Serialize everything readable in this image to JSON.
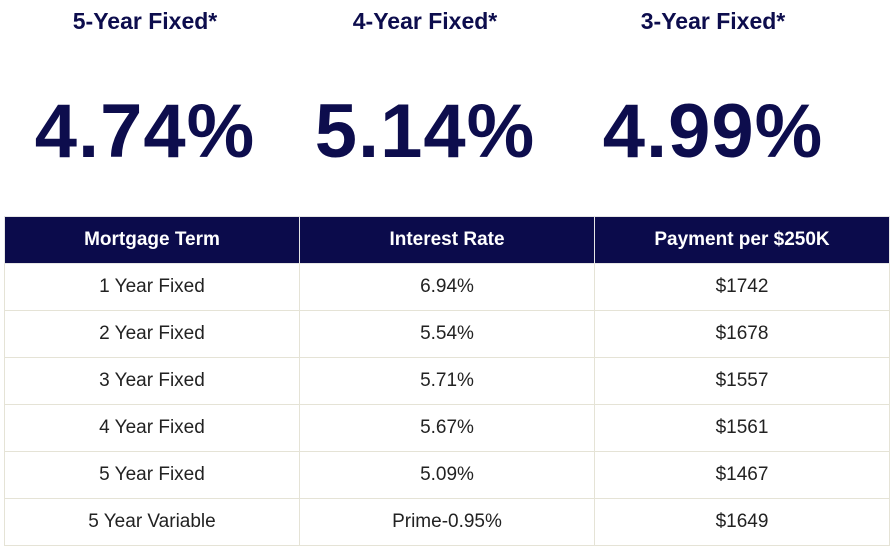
{
  "highlights": [
    {
      "label": "5-Year Fixed*",
      "rate": "4.74%"
    },
    {
      "label": "4-Year Fixed*",
      "rate": "5.14%"
    },
    {
      "label": "3-Year Fixed*",
      "rate": "4.99%"
    }
  ],
  "table": {
    "headers": [
      "Mortgage Term",
      "Interest Rate",
      "Payment per $250K"
    ],
    "rows": [
      [
        "1 Year Fixed",
        "6.94%",
        "$1742"
      ],
      [
        "2 Year Fixed",
        "5.54%",
        "$1678"
      ],
      [
        "3 Year Fixed",
        "5.71%",
        "$1557"
      ],
      [
        "4 Year Fixed",
        "5.67%",
        "$1561"
      ],
      [
        "5 Year Fixed",
        "5.09%",
        "$1467"
      ],
      [
        "5 Year Variable",
        "Prime-0.95%",
        "$1649"
      ]
    ]
  },
  "colors": {
    "navy": "#0b0b4b",
    "header_text": "#ffffff",
    "border": "#e5e3d6"
  }
}
